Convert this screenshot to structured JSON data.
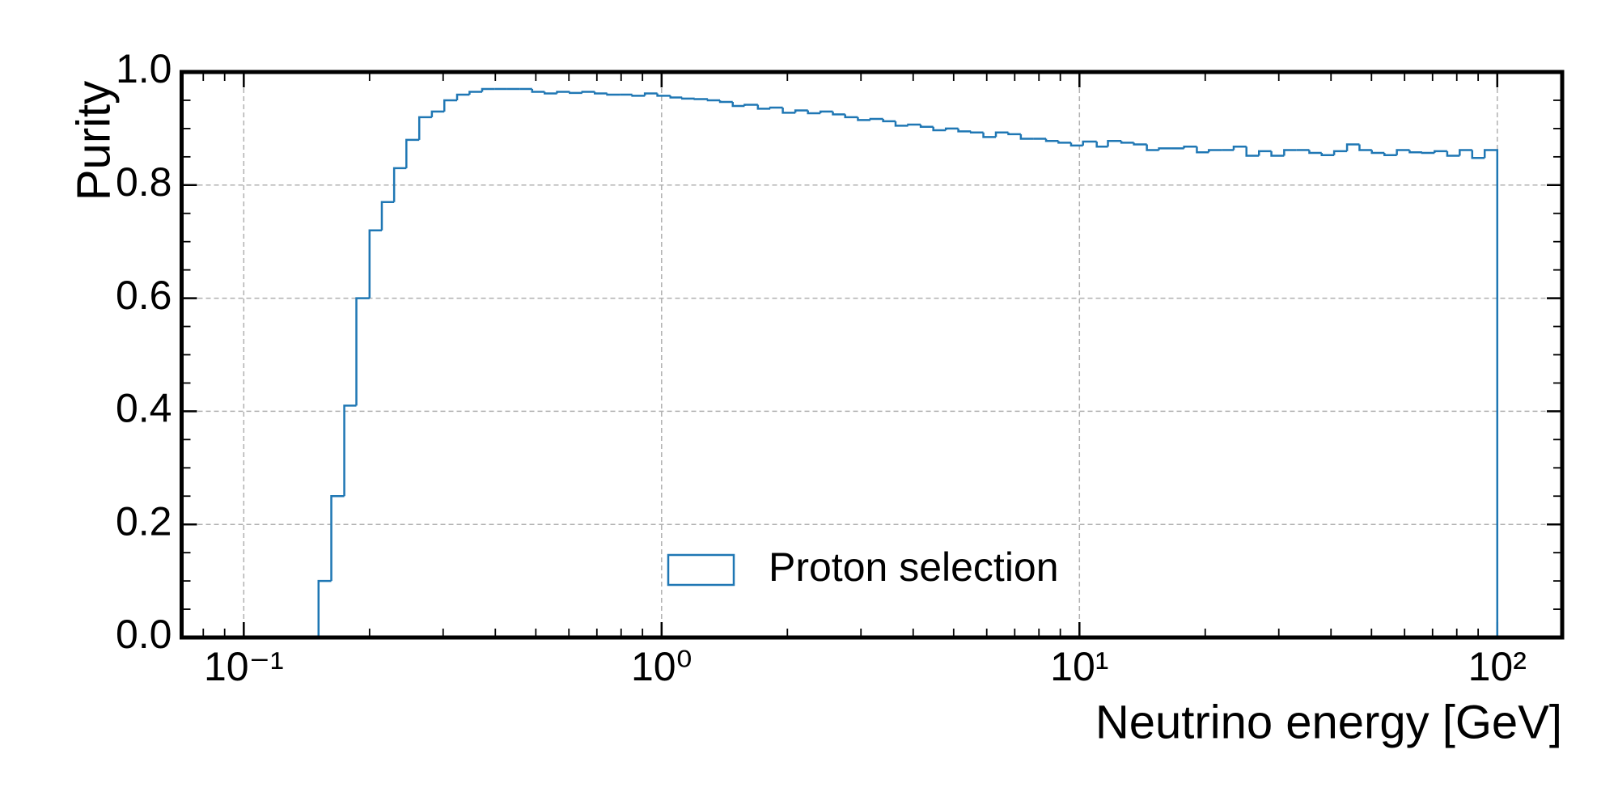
{
  "chart_data": {
    "type": "histogram",
    "xlabel": "Neutrino energy [GeV]",
    "ylabel": "Purity",
    "xscale": "log",
    "grid": true,
    "legend": "lower center",
    "xlim": [
      0.071,
      143
    ],
    "ylim": [
      0,
      1
    ],
    "xticks": [
      {
        "value": 0.1,
        "label": "10⁻¹"
      },
      {
        "value": 1,
        "label": "10⁰"
      },
      {
        "value": 10,
        "label": "10¹"
      },
      {
        "value": 100,
        "label": "10²"
      }
    ],
    "xminorticks": [
      0.08,
      0.09,
      0.2,
      0.3,
      0.4,
      0.5,
      0.6,
      0.7,
      0.8,
      0.9,
      2,
      3,
      4,
      5,
      6,
      7,
      8,
      9,
      20,
      30,
      40,
      50,
      60,
      70,
      80,
      90
    ],
    "yticks": [
      {
        "value": 0,
        "label": "0.0"
      },
      0.2,
      0.4,
      0.6,
      0.8,
      {
        "value": 1,
        "label": "1.0"
      }
    ],
    "yminorticks": [
      0.05,
      0.1,
      0.15,
      0.25,
      0.3,
      0.35,
      0.45,
      0.5,
      0.55,
      0.65,
      0.7,
      0.75,
      0.85,
      0.9,
      0.95
    ],
    "bins": [
      0.151,
      0.162,
      0.174,
      0.186,
      0.2,
      0.214,
      0.229,
      0.245,
      0.263,
      0.282,
      0.302,
      0.324,
      0.347,
      0.372,
      0.398,
      0.427,
      0.457,
      0.49,
      0.525,
      0.562,
      0.603,
      0.646,
      0.692,
      0.741,
      0.794,
      0.851,
      0.912,
      0.977,
      1.05,
      1.12,
      1.2,
      1.29,
      1.38,
      1.48,
      1.58,
      1.7,
      1.82,
      1.95,
      2.09,
      2.24,
      2.4,
      2.57,
      2.75,
      2.95,
      3.16,
      3.39,
      3.63,
      3.89,
      4.17,
      4.47,
      4.79,
      5.13,
      5.5,
      5.89,
      6.31,
      6.76,
      7.24,
      7.76,
      8.32,
      8.91,
      9.55,
      10.2,
      11.0,
      11.7,
      12.6,
      13.5,
      14.5,
      15.5,
      16.6,
      17.8,
      19.1,
      20.4,
      21.9,
      23.4,
      25.1,
      26.9,
      28.8,
      30.9,
      33.1,
      35.5,
      38.0,
      40.7,
      43.7,
      46.8,
      50.1,
      53.7,
      57.5,
      61.7,
      66.1,
      70.8,
      75.9,
      81.3,
      87.1,
      93.3,
      100
    ],
    "series": [
      {
        "name": "Proton selection",
        "color": "#1f77b4",
        "values": [
          0.1,
          0.25,
          0.41,
          0.6,
          0.72,
          0.77,
          0.83,
          0.88,
          0.92,
          0.93,
          0.95,
          0.96,
          0.965,
          0.97,
          0.97,
          0.97,
          0.97,
          0.965,
          0.962,
          0.965,
          0.963,
          0.965,
          0.962,
          0.96,
          0.96,
          0.958,
          0.962,
          0.958,
          0.955,
          0.953,
          0.952,
          0.95,
          0.947,
          0.94,
          0.942,
          0.935,
          0.937,
          0.928,
          0.932,
          0.927,
          0.93,
          0.925,
          0.92,
          0.915,
          0.917,
          0.913,
          0.905,
          0.907,
          0.903,
          0.897,
          0.9,
          0.895,
          0.893,
          0.885,
          0.893,
          0.89,
          0.882,
          0.882,
          0.878,
          0.875,
          0.87,
          0.877,
          0.868,
          0.878,
          0.875,
          0.872,
          0.862,
          0.865,
          0.865,
          0.868,
          0.858,
          0.862,
          0.862,
          0.868,
          0.852,
          0.86,
          0.852,
          0.862,
          0.862,
          0.857,
          0.853,
          0.86,
          0.872,
          0.862,
          0.857,
          0.853,
          0.862,
          0.858,
          0.857,
          0.86,
          0.852,
          0.862,
          0.848,
          0.862
        ]
      }
    ]
  }
}
